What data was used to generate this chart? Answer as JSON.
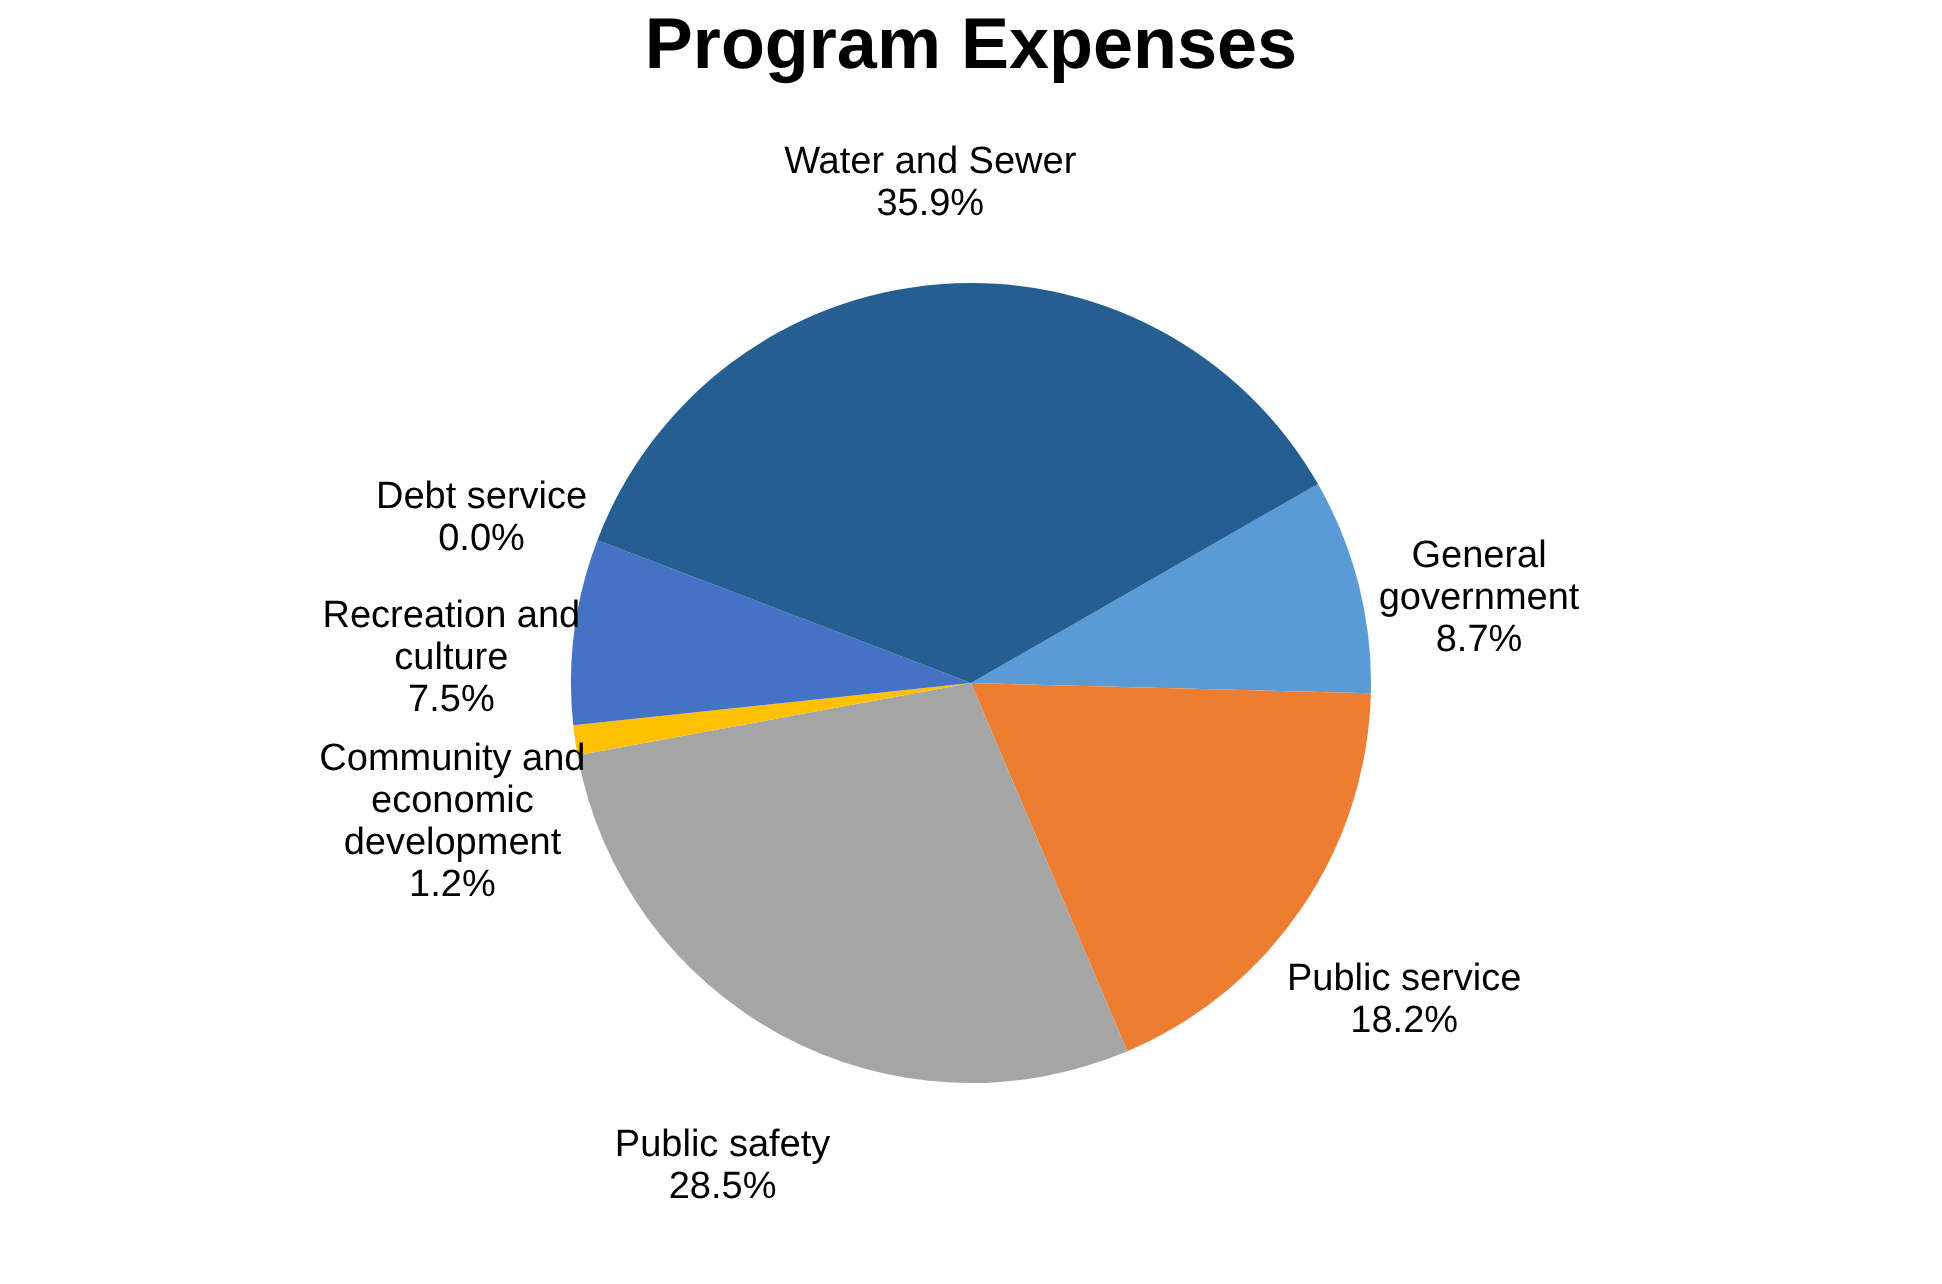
{
  "chart_data": {
    "type": "pie",
    "title": "Program Expenses",
    "categories": [
      "General government",
      "Public service",
      "Public safety",
      "Community and economic development",
      "Recreation and culture",
      "Debt service",
      "Water and Sewer"
    ],
    "values": [
      8.7,
      18.2,
      28.5,
      1.2,
      7.5,
      0.0,
      35.9
    ],
    "colors": [
      "#5b9bd5",
      "#ed7d31",
      "#a5a5a5",
      "#ffc000",
      "#4472c4",
      "#70ad47",
      "#255e91"
    ],
    "value_labels": [
      "8.7%",
      "18.2%",
      "28.5%",
      "1.2%",
      "7.5%",
      "0.0%",
      "35.9%"
    ],
    "legend": false
  }
}
